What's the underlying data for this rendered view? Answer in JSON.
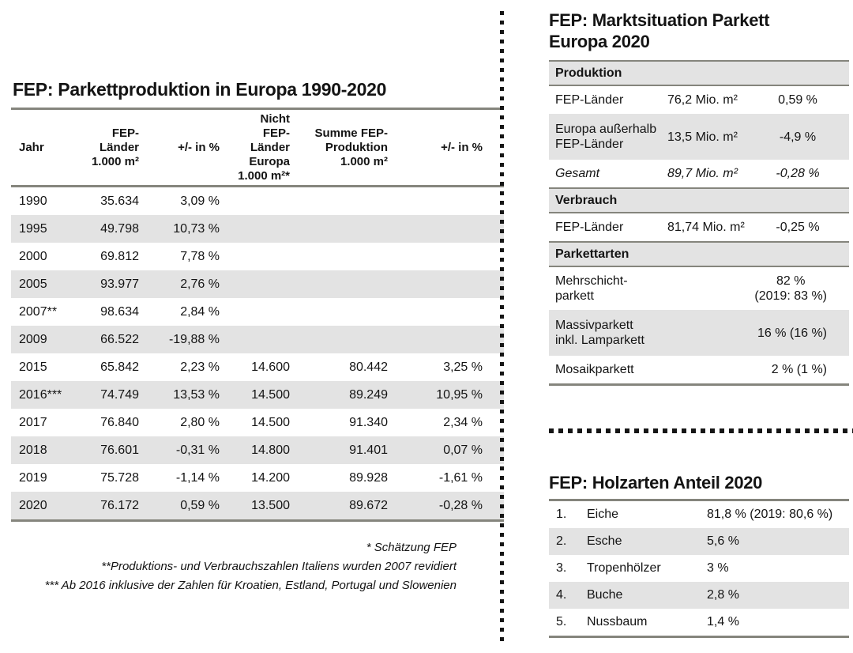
{
  "colors": {
    "row_shade": "#e3e3e3",
    "rule_line": "#85857d",
    "dots": "#151515",
    "text": "#141414",
    "background": "#ffffff"
  },
  "production": {
    "title": "FEP: Parkettproduktion in Europa 1990-2020",
    "col_headers": [
      "Jahr",
      "FEP-\nLänder\n1.000 m²",
      "+/- in %",
      "Nicht\nFEP-Länder\nEuropa\n1.000 m²*",
      "Summe FEP-\nProduktion\n1.000 m²",
      "+/- in %"
    ],
    "rows": [
      [
        "1990",
        "35.634",
        "3,09 %",
        "",
        "",
        ""
      ],
      [
        "1995",
        "49.798",
        "10,73 %",
        "",
        "",
        ""
      ],
      [
        "2000",
        "69.812",
        "7,78 %",
        "",
        "",
        ""
      ],
      [
        "2005",
        "93.977",
        "2,76 %",
        "",
        "",
        ""
      ],
      [
        "2007**",
        "98.634",
        "2,84 %",
        "",
        "",
        ""
      ],
      [
        "2009",
        "66.522",
        "-19,88 %",
        "",
        "",
        ""
      ],
      [
        "2015",
        "65.842",
        "2,23 %",
        "14.600",
        "80.442",
        "3,25 %"
      ],
      [
        "2016***",
        "74.749",
        "13,53 %",
        "14.500",
        "89.249",
        "10,95 %"
      ],
      [
        "2017",
        "76.840",
        "2,80 %",
        "14.500",
        "91.340",
        "2,34 %"
      ],
      [
        "2018",
        "76.601",
        "-0,31 %",
        "14.800",
        "91.401",
        "0,07 %"
      ],
      [
        "2019",
        "75.728",
        "-1,14 %",
        "14.200",
        "89.928",
        "-1,61 %"
      ],
      [
        "2020",
        "76.172",
        "0,59 %",
        "13.500",
        "89.672",
        "-0,28 %"
      ]
    ],
    "footnotes": [
      "* Schätzung FEP",
      "**Produktions- und Verbrauchszahlen Italiens wurden 2007 revidiert",
      "*** Ab 2016 inklusive der Zahlen für Kroatien, Estland, Portugal und Slowenien"
    ]
  },
  "market": {
    "title": "FEP: Marktsituation Parkett\nEuropa 2020",
    "produktion": {
      "header": "Produktion",
      "rows": [
        {
          "label": "FEP-Länder",
          "value": "76,2 Mio. m²",
          "pct": "0,59 %"
        },
        {
          "label": "Europa außerhalb\nFEP-Länder",
          "value": "13,5 Mio. m²",
          "pct": "-4,9 %"
        },
        {
          "label": "Gesamt",
          "value": "89,7 Mio. m²",
          "pct": "-0,28 %"
        }
      ]
    },
    "verbrauch": {
      "header": "Verbrauch",
      "rows": [
        {
          "label": "FEP-Länder",
          "value": "81,74 Mio. m²",
          "pct": "-0,25 %"
        }
      ]
    },
    "parkettarten": {
      "header": "Parkettarten",
      "rows": [
        {
          "label": "Mehrschicht-\nparkett",
          "value": "82 %\n(2019: 83 %)"
        },
        {
          "label": "Massivparkett\ninkl. Lamparkett",
          "value": "16 % (16 %)"
        },
        {
          "label": "Mosaikparkett",
          "value": "2 % (1 %)"
        }
      ]
    }
  },
  "wood": {
    "title": "FEP: Holzarten Anteil 2020",
    "rows": [
      {
        "rank": "1.",
        "name": "Eiche",
        "value": "81,8 % (2019: 80,6 %)"
      },
      {
        "rank": "2.",
        "name": "Esche",
        "value": "5,6 %"
      },
      {
        "rank": "3.",
        "name": "Tropenhölzer",
        "value": "3 %"
      },
      {
        "rank": "4.",
        "name": "Buche",
        "value": "2,8 %"
      },
      {
        "rank": "5.",
        "name": "Nussbaum",
        "value": "1,4 %"
      }
    ]
  }
}
